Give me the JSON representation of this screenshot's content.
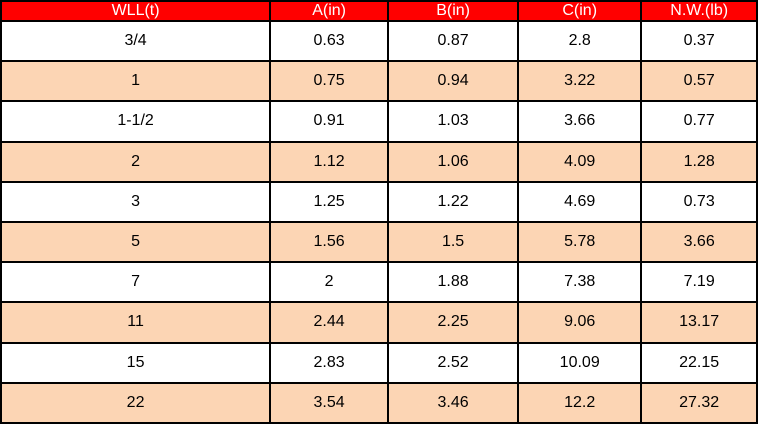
{
  "colors": {
    "header_bg": "#ff0000",
    "header_text": "#ffffff",
    "row_bg": "#ffffff",
    "row_alt_bg": "#fcd5b4",
    "border": "#000000",
    "text": "#000000"
  },
  "table": {
    "columns": [
      "WLL(t)",
      "A(in)",
      "B(in)",
      "C(in)",
      "N.W.(lb)"
    ],
    "rows": [
      [
        "3/4",
        "0.63",
        "0.87",
        "2.8",
        "0.37"
      ],
      [
        "1",
        "0.75",
        "0.94",
        "3.22",
        "0.57"
      ],
      [
        "1-1/2",
        "0.91",
        "1.03",
        "3.66",
        "0.77"
      ],
      [
        "2",
        "1.12",
        "1.06",
        "4.09",
        "1.28"
      ],
      [
        "3",
        "1.25",
        "1.22",
        "4.69",
        "0.73"
      ],
      [
        "5",
        "1.56",
        "1.5",
        "5.78",
        "3.66"
      ],
      [
        "7",
        "2",
        "1.88",
        "7.38",
        "7.19"
      ],
      [
        "11",
        "2.44",
        "2.25",
        "9.06",
        "13.17"
      ],
      [
        "15",
        "2.83",
        "2.52",
        "10.09",
        "22.15"
      ],
      [
        "22",
        "3.54",
        "3.46",
        "12.2",
        "27.32"
      ]
    ]
  }
}
